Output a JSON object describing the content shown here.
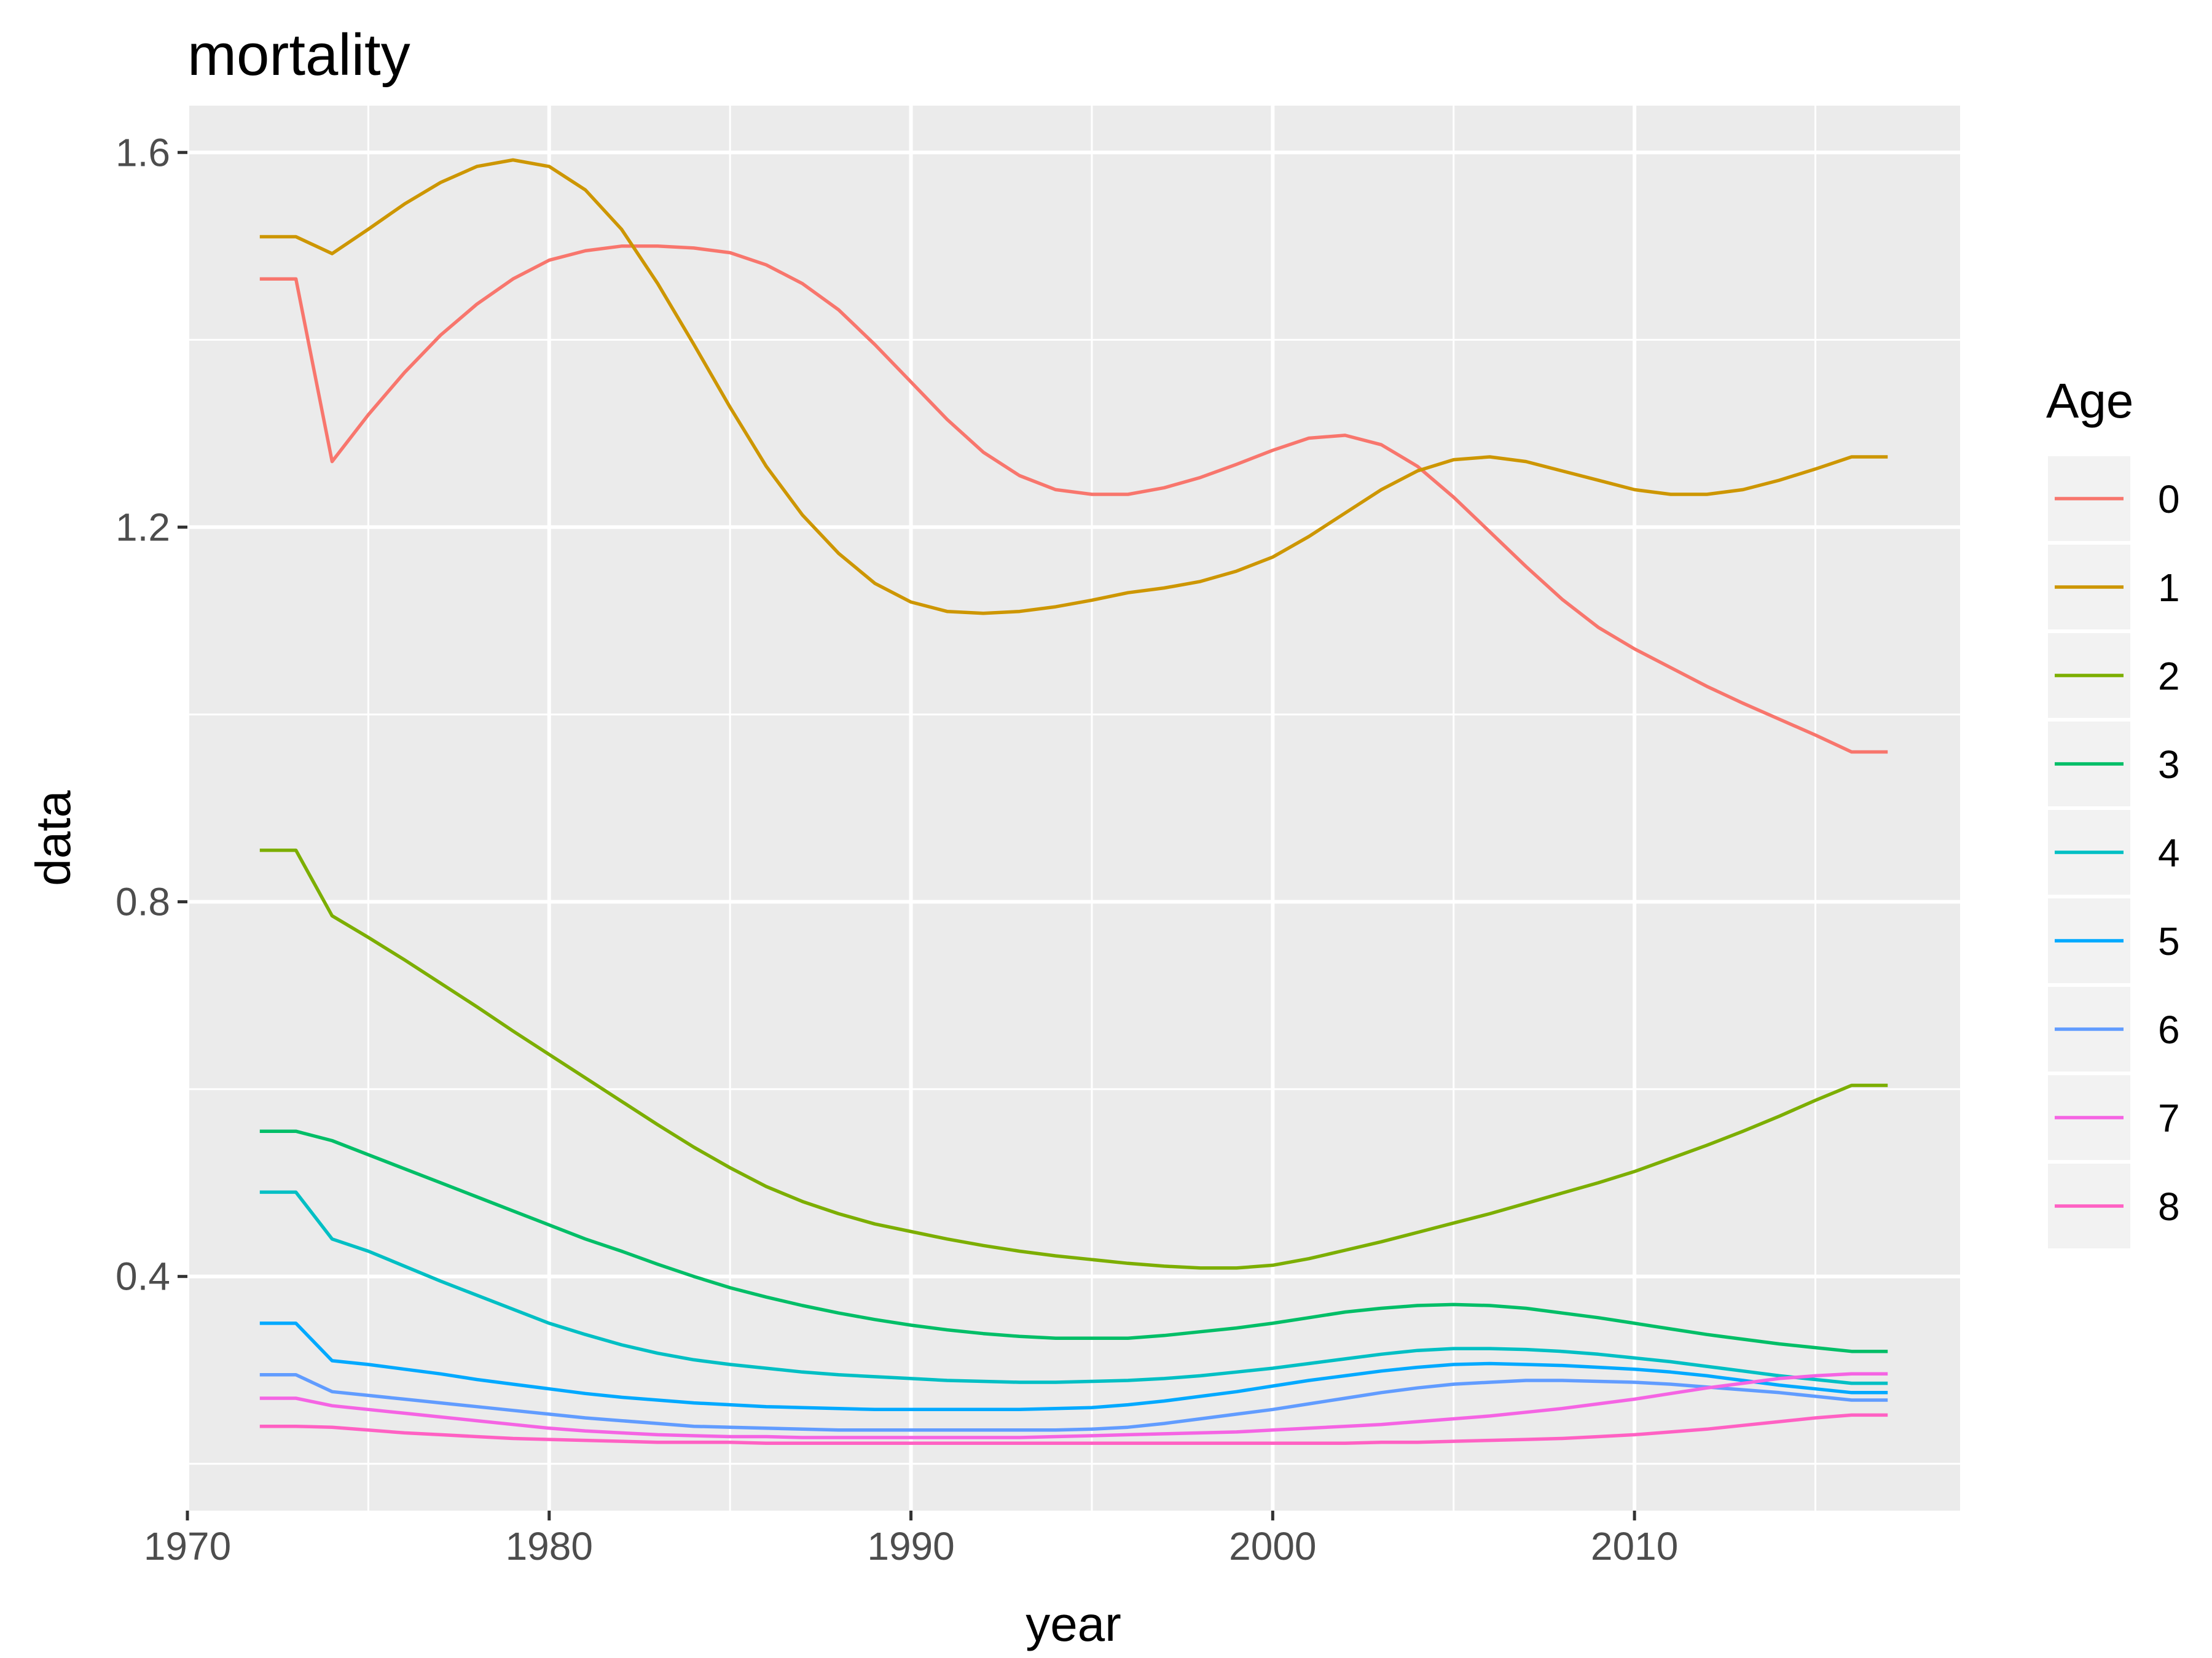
{
  "chart_data": {
    "type": "line",
    "title": "mortality",
    "xlabel": "year",
    "ylabel": "data",
    "xlim": [
      1970,
      2019
    ],
    "ylim": [
      0.15,
      1.65
    ],
    "x_ticks": [
      1970,
      1980,
      1990,
      2000,
      2010
    ],
    "x_tick_labels": [
      "1970",
      "1980",
      "1990",
      "2000",
      "2010"
    ],
    "y_ticks": [
      0.4,
      0.8,
      1.2,
      1.6
    ],
    "y_tick_labels": [
      "0.4",
      "0.8",
      "1.2",
      "1.6"
    ],
    "grid": true,
    "legend_title": "Age",
    "legend_position": "right",
    "panel_background": "#ebebeb",
    "x": [
      1972,
      1973,
      1974,
      1975,
      1976,
      1977,
      1978,
      1979,
      1980,
      1981,
      1982,
      1983,
      1984,
      1985,
      1986,
      1987,
      1988,
      1989,
      1990,
      1991,
      1992,
      1993,
      1994,
      1995,
      1996,
      1997,
      1998,
      1999,
      2000,
      2001,
      2002,
      2003,
      2004,
      2005,
      2006,
      2007,
      2008,
      2009,
      2010,
      2011,
      2012,
      2013,
      2014,
      2015,
      2016,
      2017
    ],
    "series": [
      {
        "name": "0",
        "color": "#F8766D",
        "values": [
          1.465,
          1.465,
          1.27,
          1.32,
          1.365,
          1.405,
          1.438,
          1.465,
          1.485,
          1.495,
          1.5,
          1.5,
          1.498,
          1.493,
          1.48,
          1.46,
          1.432,
          1.395,
          1.355,
          1.315,
          1.28,
          1.255,
          1.24,
          1.235,
          1.235,
          1.242,
          1.253,
          1.267,
          1.282,
          1.295,
          1.298,
          1.288,
          1.265,
          1.232,
          1.195,
          1.158,
          1.123,
          1.093,
          1.07,
          1.05,
          1.03,
          1.012,
          0.995,
          0.978,
          0.96,
          0.96
        ]
      },
      {
        "name": "1",
        "color": "#CD9600",
        "values": [
          1.51,
          1.51,
          1.492,
          1.518,
          1.545,
          1.568,
          1.585,
          1.592,
          1.585,
          1.56,
          1.518,
          1.46,
          1.395,
          1.328,
          1.265,
          1.213,
          1.172,
          1.14,
          1.12,
          1.11,
          1.108,
          1.11,
          1.115,
          1.122,
          1.13,
          1.135,
          1.142,
          1.153,
          1.168,
          1.19,
          1.215,
          1.24,
          1.26,
          1.272,
          1.275,
          1.27,
          1.26,
          1.25,
          1.24,
          1.235,
          1.235,
          1.24,
          1.25,
          1.262,
          1.275,
          1.275
        ]
      },
      {
        "name": "2",
        "color": "#7CAE00",
        "values": [
          0.855,
          0.855,
          0.785,
          0.762,
          0.738,
          0.713,
          0.688,
          0.662,
          0.637,
          0.612,
          0.587,
          0.562,
          0.538,
          0.516,
          0.496,
          0.48,
          0.467,
          0.456,
          0.448,
          0.44,
          0.433,
          0.427,
          0.422,
          0.418,
          0.414,
          0.411,
          0.409,
          0.409,
          0.412,
          0.419,
          0.428,
          0.437,
          0.447,
          0.457,
          0.467,
          0.478,
          0.489,
          0.5,
          0.512,
          0.526,
          0.54,
          0.555,
          0.571,
          0.588,
          0.604,
          0.604
        ]
      },
      {
        "name": "3",
        "color": "#00BE67",
        "values": [
          0.555,
          0.555,
          0.545,
          0.53,
          0.515,
          0.5,
          0.485,
          0.47,
          0.455,
          0.44,
          0.427,
          0.413,
          0.4,
          0.388,
          0.378,
          0.369,
          0.361,
          0.354,
          0.348,
          0.343,
          0.339,
          0.336,
          0.334,
          0.334,
          0.334,
          0.337,
          0.341,
          0.345,
          0.35,
          0.356,
          0.362,
          0.366,
          0.369,
          0.37,
          0.369,
          0.366,
          0.361,
          0.356,
          0.35,
          0.344,
          0.338,
          0.333,
          0.328,
          0.324,
          0.32,
          0.32
        ]
      },
      {
        "name": "4",
        "color": "#00BFC4",
        "values": [
          0.49,
          0.49,
          0.44,
          0.427,
          0.411,
          0.395,
          0.38,
          0.365,
          0.35,
          0.338,
          0.327,
          0.318,
          0.311,
          0.306,
          0.302,
          0.298,
          0.295,
          0.293,
          0.291,
          0.289,
          0.288,
          0.287,
          0.287,
          0.288,
          0.289,
          0.291,
          0.294,
          0.298,
          0.302,
          0.307,
          0.312,
          0.317,
          0.321,
          0.323,
          0.323,
          0.322,
          0.32,
          0.317,
          0.313,
          0.309,
          0.304,
          0.299,
          0.294,
          0.29,
          0.286,
          0.286
        ]
      },
      {
        "name": "5",
        "color": "#00A9FF",
        "values": [
          0.35,
          0.35,
          0.31,
          0.306,
          0.301,
          0.296,
          0.29,
          0.285,
          0.28,
          0.275,
          0.271,
          0.268,
          0.265,
          0.263,
          0.261,
          0.26,
          0.259,
          0.258,
          0.258,
          0.258,
          0.258,
          0.258,
          0.259,
          0.26,
          0.263,
          0.267,
          0.272,
          0.277,
          0.283,
          0.289,
          0.294,
          0.299,
          0.303,
          0.306,
          0.307,
          0.306,
          0.305,
          0.303,
          0.301,
          0.298,
          0.294,
          0.289,
          0.284,
          0.28,
          0.276,
          0.276
        ]
      },
      {
        "name": "6",
        "color": "#619CFF",
        "values": [
          0.295,
          0.295,
          0.277,
          0.273,
          0.269,
          0.265,
          0.261,
          0.257,
          0.253,
          0.249,
          0.246,
          0.243,
          0.24,
          0.239,
          0.238,
          0.237,
          0.236,
          0.236,
          0.236,
          0.236,
          0.236,
          0.236,
          0.236,
          0.237,
          0.239,
          0.243,
          0.248,
          0.253,
          0.258,
          0.264,
          0.27,
          0.276,
          0.281,
          0.285,
          0.287,
          0.289,
          0.289,
          0.288,
          0.287,
          0.285,
          0.282,
          0.279,
          0.276,
          0.272,
          0.268,
          0.268
        ]
      },
      {
        "name": "7",
        "color": "#F564E3",
        "values": [
          0.27,
          0.27,
          0.262,
          0.258,
          0.254,
          0.25,
          0.246,
          0.242,
          0.238,
          0.235,
          0.233,
          0.231,
          0.23,
          0.229,
          0.229,
          0.228,
          0.228,
          0.228,
          0.228,
          0.228,
          0.228,
          0.228,
          0.229,
          0.23,
          0.231,
          0.232,
          0.233,
          0.234,
          0.236,
          0.238,
          0.24,
          0.242,
          0.245,
          0.248,
          0.251,
          0.255,
          0.259,
          0.264,
          0.269,
          0.275,
          0.281,
          0.286,
          0.291,
          0.294,
          0.296,
          0.296
        ]
      },
      {
        "name": "8",
        "color": "#FF61C3",
        "values": [
          0.24,
          0.24,
          0.239,
          0.236,
          0.233,
          0.231,
          0.229,
          0.227,
          0.226,
          0.225,
          0.224,
          0.223,
          0.223,
          0.223,
          0.222,
          0.222,
          0.222,
          0.222,
          0.222,
          0.222,
          0.222,
          0.222,
          0.222,
          0.222,
          0.222,
          0.222,
          0.222,
          0.222,
          0.222,
          0.222,
          0.222,
          0.223,
          0.223,
          0.224,
          0.225,
          0.226,
          0.227,
          0.229,
          0.231,
          0.234,
          0.237,
          0.241,
          0.245,
          0.249,
          0.252,
          0.252
        ]
      }
    ]
  }
}
